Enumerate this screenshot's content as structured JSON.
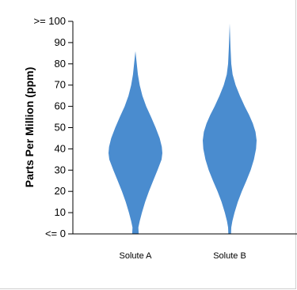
{
  "chart_data": {
    "type": "violin",
    "title": "",
    "xlabel": "",
    "ylabel": "Parts Per Million (ppm)",
    "ylim": [
      0,
      100
    ],
    "y_ticks": [
      {
        "value": 0,
        "label": "<= 0"
      },
      {
        "value": 10,
        "label": "10"
      },
      {
        "value": 20,
        "label": "20"
      },
      {
        "value": 30,
        "label": "30"
      },
      {
        "value": 40,
        "label": "40"
      },
      {
        "value": 50,
        "label": "50"
      },
      {
        "value": 60,
        "label": "60"
      },
      {
        "value": 70,
        "label": "70"
      },
      {
        "value": 80,
        "label": "80"
      },
      {
        "value": 90,
        "label": "90"
      },
      {
        "value": 100,
        "label": ">= 100"
      }
    ],
    "categories": [
      "Solute A",
      "Solute B"
    ],
    "color": "#4a8ccf",
    "series": [
      {
        "category": "Solute A",
        "min": 0,
        "max": 86,
        "density": [
          {
            "y": 0,
            "w": 0.12
          },
          {
            "y": 3,
            "w": 0.11
          },
          {
            "y": 6,
            "w": 0.16
          },
          {
            "y": 10,
            "w": 0.24
          },
          {
            "y": 15,
            "w": 0.36
          },
          {
            "y": 20,
            "w": 0.5
          },
          {
            "y": 25,
            "w": 0.66
          },
          {
            "y": 30,
            "w": 0.82
          },
          {
            "y": 35,
            "w": 0.97
          },
          {
            "y": 38,
            "w": 1.0
          },
          {
            "y": 41,
            "w": 0.98
          },
          {
            "y": 45,
            "w": 0.9
          },
          {
            "y": 50,
            "w": 0.75
          },
          {
            "y": 55,
            "w": 0.58
          },
          {
            "y": 60,
            "w": 0.4
          },
          {
            "y": 65,
            "w": 0.26
          },
          {
            "y": 70,
            "w": 0.16
          },
          {
            "y": 75,
            "w": 0.09
          },
          {
            "y": 80,
            "w": 0.05
          },
          {
            "y": 86,
            "w": 0.0
          }
        ]
      },
      {
        "category": "Solute B",
        "min": 0,
        "max": 99,
        "density": [
          {
            "y": 0,
            "w": 0.05
          },
          {
            "y": 3,
            "w": 0.06
          },
          {
            "y": 6,
            "w": 0.1
          },
          {
            "y": 10,
            "w": 0.18
          },
          {
            "y": 15,
            "w": 0.3
          },
          {
            "y": 20,
            "w": 0.45
          },
          {
            "y": 25,
            "w": 0.62
          },
          {
            "y": 30,
            "w": 0.78
          },
          {
            "y": 35,
            "w": 0.9
          },
          {
            "y": 40,
            "w": 0.98
          },
          {
            "y": 44,
            "w": 1.0
          },
          {
            "y": 48,
            "w": 0.96
          },
          {
            "y": 52,
            "w": 0.86
          },
          {
            "y": 56,
            "w": 0.72
          },
          {
            "y": 60,
            "w": 0.56
          },
          {
            "y": 65,
            "w": 0.38
          },
          {
            "y": 70,
            "w": 0.22
          },
          {
            "y": 75,
            "w": 0.11
          },
          {
            "y": 80,
            "w": 0.06
          },
          {
            "y": 88,
            "w": 0.03
          },
          {
            "y": 99,
            "w": 0.0
          }
        ]
      }
    ],
    "grid": false,
    "legend": "none"
  }
}
